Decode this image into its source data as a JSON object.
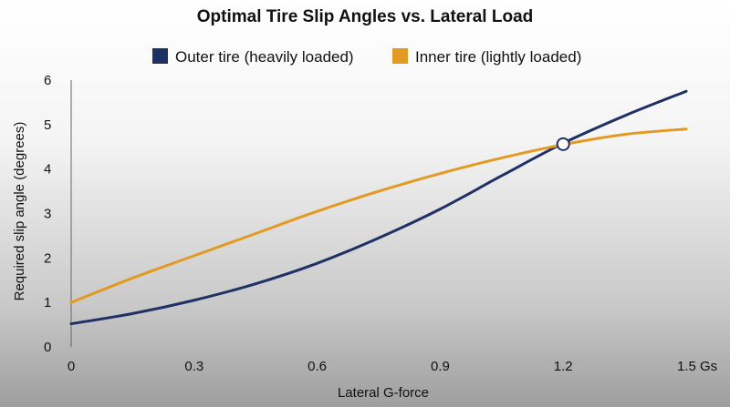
{
  "chart_data": {
    "type": "line",
    "title": "Optimal Tire Slip Angles vs. Lateral Load",
    "xlabel": "Lateral G-force",
    "ylabel": "Required slip angle (degrees)",
    "xlim": [
      0,
      1.5
    ],
    "ylim": [
      0,
      6
    ],
    "x_ticks": [
      0,
      0.3,
      0.6,
      0.9,
      1.2,
      1.5
    ],
    "x_tick_labels": [
      "0",
      "0.3",
      "0.6",
      "0.9",
      "1.2",
      "1.5 Gs"
    ],
    "y_ticks": [
      0,
      1,
      2,
      3,
      4,
      5,
      6
    ],
    "y_tick_labels": [
      "0",
      "1",
      "2",
      "3",
      "4",
      "5",
      "6"
    ],
    "grid": false,
    "legend_position": "top",
    "series": [
      {
        "name": "Outer tire (heavily loaded)",
        "color": "#1f3064",
        "x": [
          0,
          0.15,
          0.3,
          0.45,
          0.6,
          0.75,
          0.9,
          1.05,
          1.2,
          1.35,
          1.5
        ],
        "y": [
          0.52,
          0.75,
          1.05,
          1.42,
          1.88,
          2.45,
          3.1,
          3.85,
          4.58,
          5.2,
          5.75
        ]
      },
      {
        "name": "Inner tire (lightly loaded)",
        "color": "#e39a22",
        "x": [
          0,
          0.15,
          0.3,
          0.45,
          0.6,
          0.75,
          0.9,
          1.05,
          1.2,
          1.35,
          1.5
        ],
        "y": [
          1.0,
          1.55,
          2.05,
          2.55,
          3.05,
          3.5,
          3.9,
          4.25,
          4.55,
          4.78,
          4.9
        ]
      }
    ],
    "intersection": {
      "x": 1.2,
      "y": 4.56
    }
  }
}
